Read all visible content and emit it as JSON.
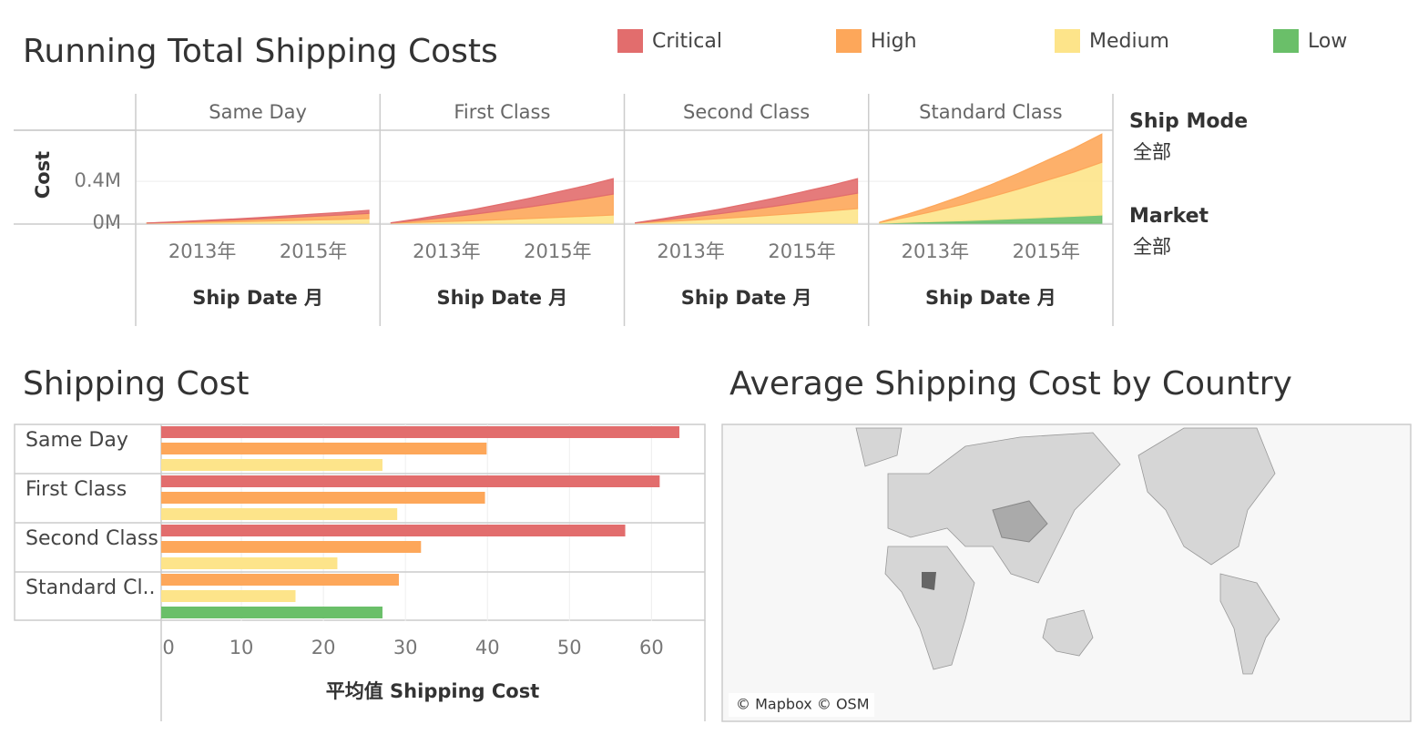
{
  "chart_data": [
    {
      "type": "area",
      "title": "Running Total Shipping Costs",
      "stacked": true,
      "facets": [
        "Same Day",
        "First Class",
        "Second Class",
        "Standard Class"
      ],
      "x": [
        2012,
        2012.5,
        2013,
        2013.5,
        2014,
        2014.5,
        2015,
        2015.5,
        2016
      ],
      "xlim": [
        2011.8,
        2016.2
      ],
      "xticks": [
        {
          "value": 2013,
          "label": "2013年"
        },
        {
          "value": 2015,
          "label": "2015年"
        }
      ],
      "x_label": "Ship Date 月",
      "y_label": "Cost",
      "ylim": [
        0,
        880000
      ],
      "yticks": [
        {
          "value": 0,
          "label": "0M"
        },
        {
          "value": 400000,
          "label": "0.4M"
        }
      ],
      "grid": true,
      "legend": "top",
      "series": [
        {
          "name": "Critical",
          "color": "#e26d6d",
          "values": [
            [
              0,
              3000,
              6000,
              9000,
              13000,
              17000,
              21000,
              25000,
              30000
            ],
            [
              1000,
              15000,
              30000,
              46000,
              64000,
              83000,
              104000,
              124000,
              148000
            ],
            [
              1000,
              14000,
              28000,
              43000,
              60000,
              78000,
              97000,
              117000,
              139000
            ],
            null
          ]
        },
        {
          "name": "High",
          "color": "#fda75a",
          "values": [
            [
              1000,
              5000,
              10000,
              16000,
              22000,
              28000,
              35000,
              42000,
              50000
            ],
            [
              2000,
              20000,
              40000,
              62000,
              86000,
              112000,
              140000,
              168000,
              200000
            ],
            [
              1000,
              15000,
              30000,
              46000,
              64000,
              83000,
              104000,
              124000,
              148000
            ],
            [
              3000,
              27000,
              54000,
              84000,
              116000,
              151000,
              189000,
              227000,
              270000
            ]
          ]
        },
        {
          "name": "Medium",
          "color": "#fde48a",
          "values": [
            [
              0,
              4000,
              9000,
              13000,
              18000,
              24000,
              30000,
              36000,
              43000
            ],
            [
              1000,
              8000,
              16000,
              24000,
              34000,
              44000,
              55000,
              66000,
              78000
            ],
            [
              1000,
              14000,
              28000,
              43000,
              60000,
              78000,
              97000,
              117000,
              139000
            ],
            [
              5000,
              50000,
              101000,
              156000,
              217000,
              282000,
              353000,
              423000,
              504000
            ]
          ]
        },
        {
          "name": "Low",
          "color": "#6abf69",
          "values": [
            null,
            null,
            null,
            [
              1000,
              8000,
              16000,
              24000,
              34000,
              44000,
              55000,
              66000,
              78000
            ]
          ]
        }
      ]
    },
    {
      "type": "barh",
      "title": "Shipping Cost",
      "categories": [
        "Same Day",
        "First Class",
        "Second Class",
        "Standard Cl.."
      ],
      "x_label": "平均值 Shipping Cost",
      "xlim": [
        0,
        66.4
      ],
      "xticks": [
        0,
        10,
        20,
        30,
        40,
        50,
        60
      ],
      "grid": true,
      "series": [
        {
          "color": "#e26d6d",
          "values": [
            63.4,
            61.0,
            56.8,
            null
          ]
        },
        {
          "color": "#fda75a",
          "values": [
            39.9,
            39.7,
            31.9,
            29.2
          ]
        },
        {
          "color": "#fde48a",
          "values": [
            27.2,
            29.0,
            21.7,
            16.6
          ]
        },
        {
          "color": "#6abf69",
          "values": [
            null,
            null,
            null,
            27.2
          ]
        }
      ]
    }
  ],
  "filters": [
    {
      "label": "Ship Mode",
      "value": "全部"
    },
    {
      "label": "Market",
      "value": "全部"
    }
  ],
  "map": {
    "title": "Average Shipping Cost by Country",
    "attribution": "© Mapbox © OSM"
  }
}
